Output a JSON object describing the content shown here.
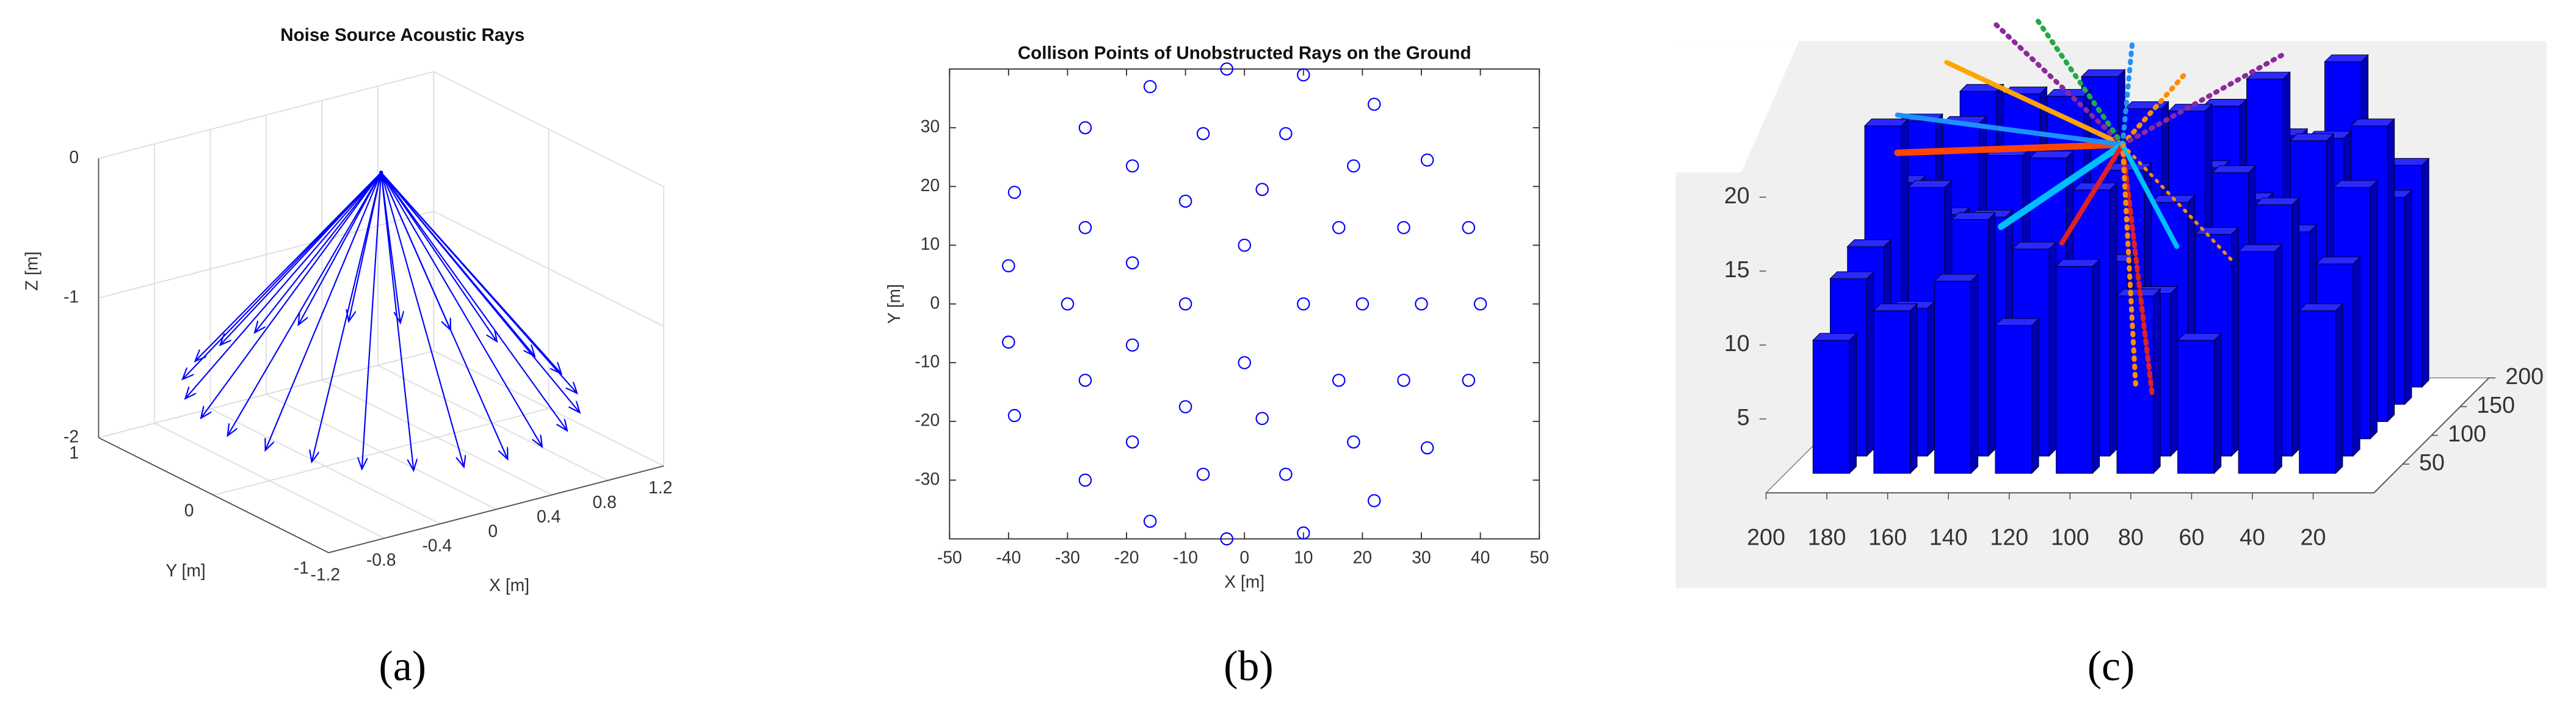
{
  "chart_data": [
    {
      "type": "quiver3d",
      "title": "Noise Source Acoustic Rays",
      "xlabel": "X [m]",
      "ylabel": "Y [m]",
      "zlabel": "Z [m]",
      "xlim": [
        -1.2,
        1.2
      ],
      "ylim": [
        -1,
        1
      ],
      "zlim": [
        -2,
        0
      ],
      "xticks": [
        -1.2,
        -0.8,
        -0.4,
        0,
        0.4,
        0.8,
        1.2
      ],
      "yticks": [
        -1,
        0,
        1
      ],
      "zticks": [
        -2,
        -1,
        0
      ],
      "grid": true,
      "color": "#0000ff",
      "source": [
        0,
        0,
        0
      ],
      "rays": {
        "x": [
          1.1,
          1.06,
          0.95,
          0.78,
          0.55,
          0.28,
          0,
          -0.28,
          -0.55,
          -0.78,
          -0.95,
          -1.06,
          -1.1,
          -1.06,
          -0.95,
          -0.78,
          -0.55,
          -0.28,
          0,
          0.28,
          0.55,
          0.78,
          0.95,
          1.06
        ],
        "y": [
          0,
          0.28,
          0.55,
          0.78,
          0.95,
          1.06,
          1.1,
          1.06,
          0.95,
          0.78,
          0.55,
          0.28,
          0,
          -0.28,
          -0.55,
          -0.78,
          -0.95,
          -1.06,
          -1.1,
          -1.06,
          -0.95,
          -0.78,
          -0.55,
          -0.28
        ],
        "z": [
          -1.6,
          -1.6,
          -1.6,
          -1.6,
          -1.6,
          -1.6,
          -1.6,
          -1.6,
          -1.6,
          -1.6,
          -1.6,
          -1.6,
          -1.6,
          -1.6,
          -1.6,
          -1.6,
          -1.6,
          -1.6,
          -1.6,
          -1.6,
          -1.6,
          -1.6,
          -1.6,
          -1.6
        ]
      },
      "label": "(a)"
    },
    {
      "type": "scatter",
      "title": "Collison Points of Unobstructed Rays on the Ground",
      "xlabel": "X [m]",
      "ylabel": "Y [m]",
      "x": [
        -16,
        -3,
        10,
        22,
        -27,
        -7,
        7,
        31,
        -19,
        18.5,
        -39,
        -10,
        3,
        -27,
        16,
        27,
        38,
        -40,
        -19,
        0,
        -30,
        -10,
        10,
        20,
        30,
        40,
        -40,
        -19,
        0,
        -27,
        16,
        27,
        38,
        -39,
        -10,
        3,
        -19,
        18.5,
        31,
        -27,
        -7,
        7,
        22,
        -16,
        -3,
        10
      ],
      "y": [
        37,
        40,
        39,
        34,
        30,
        29,
        29,
        24.5,
        23.5,
        23.5,
        19,
        17.5,
        19.5,
        13,
        13,
        13,
        13,
        6.5,
        7,
        10,
        0,
        0,
        0,
        0,
        0,
        0,
        -6.5,
        -7,
        -10,
        -13,
        -13,
        -13,
        -13,
        -19,
        -17.5,
        -19.5,
        -23.5,
        -23.5,
        -24.5,
        -30,
        -29,
        -29,
        -33.5,
        -37,
        -40,
        -39
      ],
      "xlim": [
        -50,
        50
      ],
      "ylim": [
        -40,
        40
      ],
      "xticks": [
        -50,
        -40,
        -30,
        -20,
        -10,
        0,
        10,
        20,
        30,
        40,
        50
      ],
      "yticks": [
        -30,
        -20,
        -10,
        0,
        10,
        20,
        30
      ],
      "color": "#0000ff",
      "label": "(b)"
    },
    {
      "type": "bar3d",
      "xlim": [
        0,
        200
      ],
      "ylim": [
        0,
        200
      ],
      "zlim": [
        0,
        22
      ],
      "xticks": [
        20,
        40,
        60,
        80,
        100,
        120,
        140,
        160,
        180,
        200
      ],
      "yticks": [
        50,
        100,
        150,
        200
      ],
      "zticks": [
        5,
        10,
        15,
        20
      ],
      "color": "#0000ff",
      "footprint": 12,
      "buildings": {
        "x": [
          185,
          165,
          145,
          125,
          105,
          85,
          65,
          45,
          25,
          185,
          165,
          145,
          125,
          105,
          85,
          65,
          45,
          25,
          185,
          165,
          145,
          125,
          105,
          85,
          65,
          45,
          25,
          185,
          165,
          145,
          125,
          105,
          85,
          65,
          45,
          25,
          185,
          165,
          145,
          125,
          105,
          85,
          65,
          45,
          25,
          185,
          165,
          145,
          125,
          105,
          85,
          65,
          45,
          25
        ],
        "y": [
          190,
          190,
          190,
          190,
          190,
          190,
          190,
          190,
          190,
          160,
          160,
          160,
          160,
          160,
          160,
          160,
          160,
          160,
          130,
          130,
          130,
          130,
          130,
          130,
          130,
          130,
          130,
          100,
          100,
          100,
          100,
          100,
          100,
          100,
          100,
          100,
          70,
          70,
          70,
          70,
          70,
          70,
          70,
          70,
          70,
          40,
          40,
          40,
          40,
          40,
          40,
          40,
          40,
          40
        ],
        "height": [
          18,
          20,
          16,
          21,
          14,
          19,
          17,
          22,
          15,
          15,
          19,
          21,
          13,
          20,
          16,
          22,
          18,
          14,
          20,
          14,
          18,
          22,
          17,
          21,
          15,
          19,
          20,
          13,
          17,
          15,
          19,
          12,
          16,
          18,
          14,
          17,
          12,
          10,
          16,
          14,
          18,
          11,
          15,
          17,
          13,
          9,
          11,
          13,
          10,
          14,
          12,
          9,
          15,
          11
        ]
      },
      "label": "(c)"
    }
  ]
}
